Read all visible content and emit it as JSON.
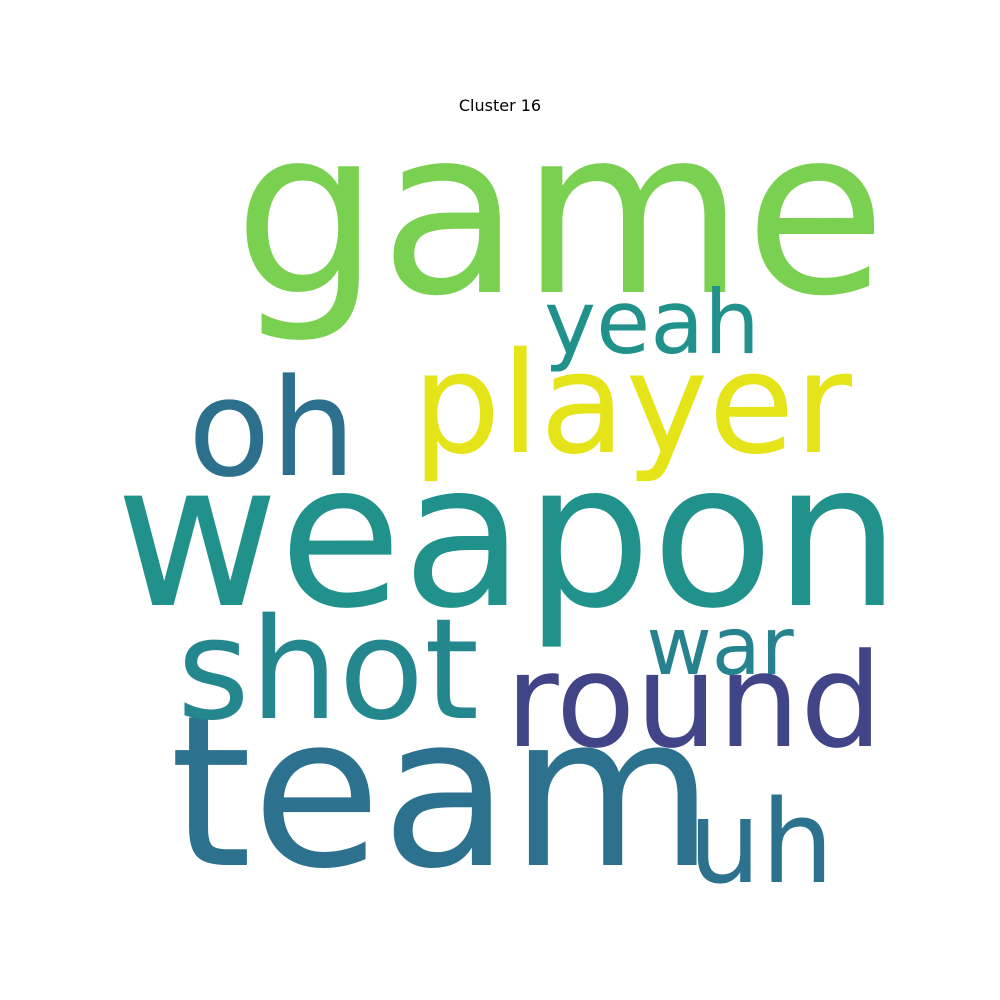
{
  "title": "Cluster 16",
  "words": [
    {
      "text": "game",
      "color": "#7ad151"
    },
    {
      "text": "weapon",
      "color": "#21918c"
    },
    {
      "text": "team",
      "color": "#2c728e"
    },
    {
      "text": "player",
      "color": "#e5e419"
    },
    {
      "text": "oh",
      "color": "#2d708e"
    },
    {
      "text": "shot",
      "color": "#24878e"
    },
    {
      "text": "round",
      "color": "#414487"
    },
    {
      "text": "yeah",
      "color": "#21918c"
    },
    {
      "text": "war",
      "color": "#26828e"
    },
    {
      "text": "uh",
      "color": "#2c728e"
    }
  ]
}
